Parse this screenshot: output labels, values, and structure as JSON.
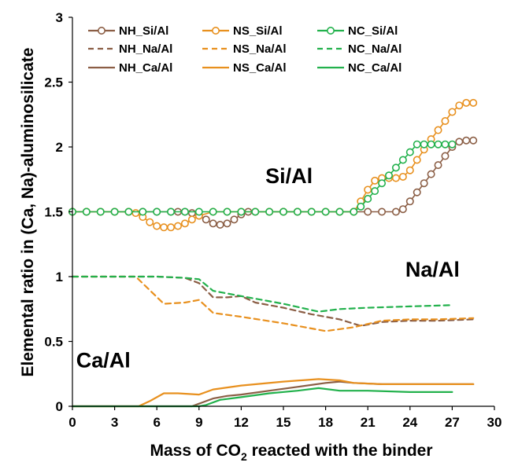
{
  "chart_data": {
    "type": "line",
    "xlabel": "Mass of CO",
    "xlabel_sub": "2",
    "xlabel_rest": " reacted with the binder",
    "ylabel": "Elemental ratio in (Ca, Na)-aluminosilicate",
    "xlim": [
      0,
      30
    ],
    "ylim": [
      0,
      3
    ],
    "xticks": [
      "0",
      "3",
      "6",
      "9",
      "12",
      "15",
      "18",
      "21",
      "24",
      "27",
      "30"
    ],
    "yticks": [
      "0",
      "0.5",
      "1",
      "1.5",
      "2",
      "2.5",
      "3"
    ],
    "grid": false,
    "legend_position": "top",
    "annotations": [
      {
        "text": "Si/Al",
        "x": 15.4,
        "y": 1.72
      },
      {
        "text": "Na/Al",
        "x": 25.6,
        "y": 1.0
      },
      {
        "text": "Ca/Al",
        "x": 2.2,
        "y": 0.3
      }
    ],
    "series": [
      {
        "name": "NH_Si/Al",
        "color": "#8B5E45",
        "style": "circles",
        "x": [
          0,
          1,
          2,
          3,
          4,
          5,
          6,
          7,
          7.5,
          8,
          8.5,
          9,
          9.5,
          10,
          10.5,
          11,
          11.5,
          12,
          12.5,
          13,
          14,
          15,
          16,
          17,
          18,
          19,
          20,
          21,
          22,
          23,
          23.5,
          24,
          24.5,
          25,
          25.5,
          26,
          26.5,
          27,
          27.5,
          28,
          28.5
        ],
        "y": [
          1.5,
          1.5,
          1.5,
          1.5,
          1.5,
          1.5,
          1.5,
          1.5,
          1.5,
          1.5,
          1.49,
          1.47,
          1.44,
          1.41,
          1.4,
          1.41,
          1.44,
          1.48,
          1.5,
          1.5,
          1.5,
          1.5,
          1.5,
          1.5,
          1.5,
          1.5,
          1.5,
          1.5,
          1.5,
          1.5,
          1.52,
          1.58,
          1.65,
          1.72,
          1.79,
          1.86,
          1.93,
          2.0,
          2.04,
          2.05,
          2.05
        ]
      },
      {
        "name": "NS_Si/Al",
        "color": "#E8901E",
        "style": "circles",
        "x": [
          0,
          1,
          2,
          3,
          4,
          4.5,
          5,
          5.5,
          6,
          6.5,
          7,
          7.5,
          8,
          8.5,
          9,
          10,
          11,
          12,
          13,
          14,
          15,
          16,
          17,
          18,
          19,
          20,
          20.5,
          21,
          21.5,
          22,
          22.5,
          23,
          23.5,
          24,
          24.5,
          25,
          25.5,
          26,
          26.5,
          27,
          27.5,
          28,
          28.5
        ],
        "y": [
          1.5,
          1.5,
          1.5,
          1.5,
          1.5,
          1.49,
          1.46,
          1.42,
          1.39,
          1.38,
          1.38,
          1.39,
          1.41,
          1.44,
          1.47,
          1.5,
          1.5,
          1.5,
          1.5,
          1.5,
          1.5,
          1.5,
          1.5,
          1.5,
          1.5,
          1.5,
          1.58,
          1.67,
          1.74,
          1.76,
          1.76,
          1.76,
          1.77,
          1.82,
          1.9,
          1.98,
          2.06,
          2.13,
          2.2,
          2.27,
          2.32,
          2.34,
          2.34
        ]
      },
      {
        "name": "NC_Si/Al",
        "color": "#22B14C",
        "style": "circles",
        "x": [
          0,
          1,
          2,
          3,
          4,
          5,
          6,
          7,
          8,
          9,
          10,
          11,
          12,
          13,
          14,
          15,
          16,
          17,
          18,
          19,
          20,
          20.5,
          21,
          21.5,
          22,
          22.5,
          23,
          23.5,
          24,
          24.5,
          25,
          25.5,
          26,
          26.5,
          27
        ],
        "y": [
          1.5,
          1.5,
          1.5,
          1.5,
          1.5,
          1.5,
          1.5,
          1.5,
          1.5,
          1.5,
          1.5,
          1.5,
          1.5,
          1.5,
          1.5,
          1.5,
          1.5,
          1.5,
          1.5,
          1.5,
          1.5,
          1.54,
          1.6,
          1.66,
          1.72,
          1.78,
          1.84,
          1.9,
          1.96,
          2.02,
          2.02,
          2.02,
          2.02,
          2.02,
          2.02
        ]
      },
      {
        "name": "NH_Na/Al",
        "color": "#8B5E45",
        "style": "dashed",
        "x": [
          0,
          3,
          6,
          8,
          9,
          10,
          11,
          12,
          13,
          15,
          17,
          19,
          20.5,
          22,
          24,
          26,
          28.5
        ],
        "y": [
          1.0,
          1.0,
          1.0,
          0.99,
          0.95,
          0.84,
          0.84,
          0.85,
          0.8,
          0.76,
          0.71,
          0.67,
          0.62,
          0.65,
          0.66,
          0.66,
          0.67
        ]
      },
      {
        "name": "NS_Na/Al",
        "color": "#E8901E",
        "style": "dashed",
        "x": [
          0,
          3,
          4.5,
          6.5,
          8,
          9,
          10,
          12,
          15,
          17,
          18,
          20,
          22,
          24,
          26,
          28.5
        ],
        "y": [
          1.0,
          1.0,
          1.0,
          0.79,
          0.8,
          0.82,
          0.72,
          0.69,
          0.64,
          0.6,
          0.58,
          0.61,
          0.66,
          0.67,
          0.67,
          0.68
        ]
      },
      {
        "name": "NC_Na/Al",
        "color": "#22B14C",
        "style": "dashed",
        "x": [
          0,
          3,
          6,
          8,
          9,
          10,
          12,
          15,
          17.5,
          19,
          21,
          24,
          27
        ],
        "y": [
          1.0,
          1.0,
          1.0,
          0.99,
          0.98,
          0.89,
          0.85,
          0.79,
          0.73,
          0.75,
          0.76,
          0.77,
          0.78
        ]
      },
      {
        "name": "NH_Ca/Al",
        "color": "#8B5E45",
        "style": "solid",
        "x": [
          0,
          3,
          6,
          8.5,
          9,
          10,
          11,
          12,
          14,
          16,
          18,
          19,
          20,
          22,
          24,
          26,
          28.5
        ],
        "y": [
          0,
          0,
          0,
          0,
          0.02,
          0.06,
          0.08,
          0.09,
          0.12,
          0.15,
          0.18,
          0.19,
          0.18,
          0.17,
          0.17,
          0.17,
          0.17
        ]
      },
      {
        "name": "NS_Ca/Al",
        "color": "#E8901E",
        "style": "solid",
        "x": [
          0,
          3,
          4.7,
          5.5,
          6.5,
          7.5,
          9,
          10,
          12,
          15,
          17.5,
          19,
          20,
          22,
          24,
          26,
          28.5
        ],
        "y": [
          0,
          0,
          0,
          0.04,
          0.1,
          0.1,
          0.09,
          0.13,
          0.16,
          0.19,
          0.21,
          0.2,
          0.18,
          0.17,
          0.17,
          0.17,
          0.17
        ]
      },
      {
        "name": "NC_Ca/Al",
        "color": "#22B14C",
        "style": "solid",
        "x": [
          0,
          3,
          6,
          9,
          9.5,
          10.5,
          12,
          14,
          16,
          17.5,
          19,
          21,
          24,
          27
        ],
        "y": [
          0,
          0,
          0,
          0,
          0.01,
          0.05,
          0.07,
          0.1,
          0.12,
          0.14,
          0.12,
          0.12,
          0.11,
          0.11
        ]
      }
    ]
  }
}
